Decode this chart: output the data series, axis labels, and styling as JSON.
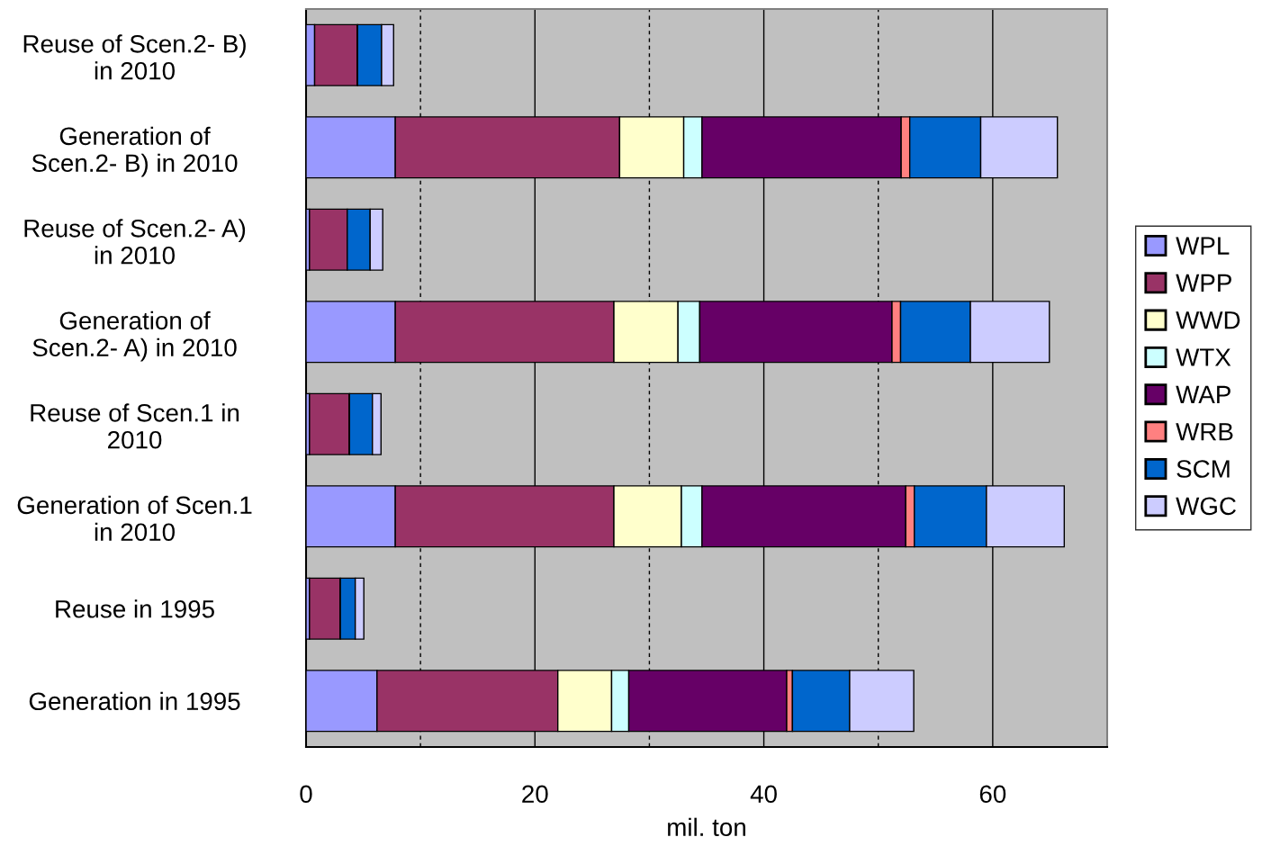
{
  "chart_data": {
    "type": "bar",
    "orientation": "horizontal",
    "stacked": true,
    "categories": [
      "Reuse of Scen.2- B)\nin 2010",
      "Generation of\nScen.2- B) in 2010",
      "Reuse of Scen.2- A)\nin 2010",
      "Generation of\nScen.2- A) in 2010",
      "Reuse of Scen.1 in\n2010",
      "Generation of Scen.1\nin 2010",
      "Reuse in 1995",
      "Generation in 1995"
    ],
    "series": [
      {
        "name": "WPL",
        "color": "#9999ff",
        "values": [
          0.75,
          7.8,
          0.3,
          7.8,
          0.3,
          7.8,
          0.3,
          6.2
        ]
      },
      {
        "name": "WPP",
        "color": "#993366",
        "values": [
          3.75,
          19.6,
          3.3,
          19.1,
          3.5,
          19.1,
          2.7,
          15.8
        ]
      },
      {
        "name": "WWD",
        "color": "#ffffcc",
        "values": [
          0,
          5.6,
          0,
          5.6,
          0,
          5.9,
          0,
          4.7
        ]
      },
      {
        "name": "WTX",
        "color": "#ccffff",
        "values": [
          0,
          1.6,
          0,
          1.9,
          0,
          1.8,
          0,
          1.5
        ]
      },
      {
        "name": "WAP",
        "color": "#660066",
        "values": [
          0,
          17.4,
          0,
          16.8,
          0,
          17.8,
          0,
          13.8
        ]
      },
      {
        "name": "WRB",
        "color": "#ff8080",
        "values": [
          0,
          0.75,
          0,
          0.75,
          0,
          0.75,
          0,
          0.5
        ]
      },
      {
        "name": "SCM",
        "color": "#0066cc",
        "values": [
          2.1,
          6.2,
          2.0,
          6.1,
          2.0,
          6.3,
          1.3,
          5.0
        ]
      },
      {
        "name": "WGC",
        "color": "#ccccff",
        "values": [
          1.05,
          6.7,
          1.1,
          6.9,
          0.75,
          6.8,
          0.75,
          5.6
        ]
      }
    ],
    "xlabel": "mil. ton",
    "xlim": [
      0,
      70
    ],
    "xticks": [
      0,
      {
        "value": 10,
        "label": null
      },
      20,
      {
        "value": 30,
        "label": null
      },
      40,
      {
        "value": 50,
        "label": null
      },
      60,
      {
        "value": 70,
        "label": null
      }
    ],
    "grid": "x",
    "legend": "right"
  }
}
